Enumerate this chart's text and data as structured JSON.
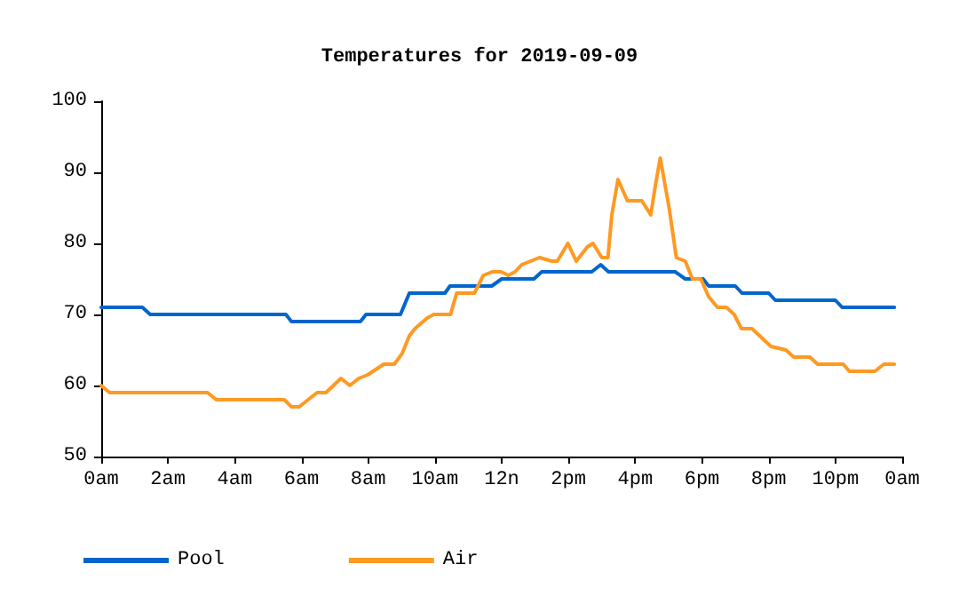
{
  "chart_data": {
    "type": "line",
    "title": "Temperatures for 2019-09-09",
    "xlim": [
      "2019-09-09T00:00",
      "2019-09-10T00:00"
    ],
    "xticks": [
      {
        "value": "2019-09-09T00:00",
        "label": "0am"
      },
      {
        "value": "2019-09-09T02:00",
        "label": "2am"
      },
      {
        "value": "2019-09-09T04:00",
        "label": "4am"
      },
      {
        "value": "2019-09-09T06:00",
        "label": "6am"
      },
      {
        "value": "2019-09-09T08:00",
        "label": "8am"
      },
      {
        "value": "2019-09-09T10:00",
        "label": "10am"
      },
      {
        "value": "2019-09-09T12:00",
        "label": "12n"
      },
      {
        "value": "2019-09-09T14:00",
        "label": "2pm"
      },
      {
        "value": "2019-09-09T16:00",
        "label": "4pm"
      },
      {
        "value": "2019-09-09T18:00",
        "label": "6pm"
      },
      {
        "value": "2019-09-09T20:00",
        "label": "8pm"
      },
      {
        "value": "2019-09-09T22:00",
        "label": "10pm"
      },
      {
        "value": "2019-09-10T00:00",
        "label": "0am"
      }
    ],
    "ylim": [
      50,
      100
    ],
    "yticks": [
      50,
      60,
      70,
      80,
      90,
      100
    ],
    "grid": false,
    "legend": "bottom left",
    "marker": "none",
    "line_style": "solid",
    "series": [
      {
        "name": "Pool",
        "color": "#0066cc",
        "x": [
          "2019-09-09T00:00",
          "2019-09-09T01:14",
          "2019-09-09T01:28",
          "2019-09-09T05:32",
          "2019-09-09T05:42",
          "2019-09-09T07:46",
          "2019-09-09T07:56",
          "2019-09-09T08:58",
          "2019-09-09T09:14",
          "2019-09-09T10:18",
          "2019-09-09T10:27",
          "2019-09-09T11:42",
          "2019-09-09T12:00",
          "2019-09-09T12:58",
          "2019-09-09T13:12",
          "2019-09-09T14:42",
          "2019-09-09T14:58",
          "2019-09-09T15:12",
          "2019-09-09T17:12",
          "2019-09-09T17:30",
          "2019-09-09T18:02",
          "2019-09-09T18:12",
          "2019-09-09T19:00",
          "2019-09-09T19:12",
          "2019-09-09T20:00",
          "2019-09-09T20:12",
          "2019-09-09T22:00",
          "2019-09-09T22:12",
          "2019-09-09T23:46"
        ],
        "values": [
          71,
          71,
          70,
          70,
          69,
          69,
          70,
          70,
          73,
          73,
          74,
          74,
          75,
          75,
          76,
          76,
          77,
          76,
          76,
          75,
          75,
          74,
          74,
          73,
          73,
          72,
          72,
          71,
          71
        ]
      },
      {
        "name": "Air",
        "color": "#ff9922",
        "x": [
          "2019-09-09T00:00",
          "2019-09-09T00:15",
          "2019-09-09T03:11",
          "2019-09-09T03:27",
          "2019-09-09T05:29",
          "2019-09-09T05:42",
          "2019-09-09T05:56",
          "2019-09-09T06:28",
          "2019-09-09T06:44",
          "2019-09-09T07:11",
          "2019-09-09T07:27",
          "2019-09-09T07:43",
          "2019-09-09T07:59",
          "2019-09-09T08:28",
          "2019-09-09T08:47",
          "2019-09-09T09:01",
          "2019-09-09T09:14",
          "2019-09-09T09:24",
          "2019-09-09T09:46",
          "2019-09-09T09:58",
          "2019-09-09T10:28",
          "2019-09-09T10:39",
          "2019-09-09T11:11",
          "2019-09-09T11:27",
          "2019-09-09T11:43",
          "2019-09-09T11:59",
          "2019-09-09T12:12",
          "2019-09-09T12:24",
          "2019-09-09T12:36",
          "2019-09-09T13:08",
          "2019-09-09T13:30",
          "2019-09-09T13:40",
          "2019-09-09T13:59",
          "2019-09-09T14:14",
          "2019-09-09T14:34",
          "2019-09-09T14:44",
          "2019-09-09T15:00",
          "2019-09-09T15:11",
          "2019-09-09T15:18",
          "2019-09-09T15:29",
          "2019-09-09T15:46",
          "2019-09-09T16:12",
          "2019-09-09T16:28",
          "2019-09-09T16:36",
          "2019-09-09T16:45",
          "2019-09-09T17:01",
          "2019-09-09T17:14",
          "2019-09-09T17:30",
          "2019-09-09T17:43",
          "2019-09-09T17:58",
          "2019-09-09T18:12",
          "2019-09-09T18:28",
          "2019-09-09T18:44",
          "2019-09-09T18:58",
          "2019-09-09T19:11",
          "2019-09-09T19:30",
          "2019-09-09T20:04",
          "2019-09-09T20:31",
          "2019-09-09T20:45",
          "2019-09-09T21:14",
          "2019-09-09T21:28",
          "2019-09-09T22:14",
          "2019-09-09T22:25",
          "2019-09-09T23:11",
          "2019-09-09T23:27",
          "2019-09-09T23:46"
        ],
        "values": [
          60,
          59,
          59,
          58,
          58,
          57,
          57,
          59,
          59,
          61,
          60,
          61,
          61.5,
          63,
          63,
          64.5,
          67,
          68,
          69.5,
          70,
          70,
          73,
          73,
          75.5,
          76,
          76,
          75.5,
          76,
          77,
          78,
          77.5,
          77.5,
          80,
          77.5,
          79.5,
          80,
          78,
          78,
          84,
          89,
          86,
          86,
          84,
          88,
          92,
          85,
          78,
          77.5,
          75,
          75,
          72.5,
          71,
          71,
          70,
          68,
          68,
          65.5,
          65,
          64,
          64,
          63,
          63,
          62,
          62,
          63,
          63
        ]
      }
    ]
  }
}
